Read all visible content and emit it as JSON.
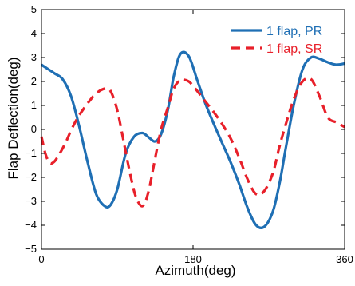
{
  "chart_data": {
    "type": "line",
    "title": "",
    "xlabel": "Azimuth(deg)",
    "ylabel": "Flap Deflection(deg)",
    "xlim": [
      0,
      360
    ],
    "ylim": [
      -5,
      5
    ],
    "x_ticks": [
      0,
      180,
      360
    ],
    "x_tick_labels": [
      "0",
      "180",
      "360"
    ],
    "y_ticks": [
      -5,
      -4,
      -3,
      -2,
      -1,
      0,
      1,
      2,
      3,
      4,
      5
    ],
    "y_tick_labels": [
      "−5",
      "−4",
      "−3",
      "−2",
      "−1",
      "0",
      "1",
      "2",
      "3",
      "4",
      "5"
    ],
    "grid": false,
    "legend_position": "top-right",
    "series": [
      {
        "name": "1 flap, PR",
        "color": "#1f6fb4",
        "dash": "solid",
        "x": [
          0,
          15,
          25,
          35,
          45,
          55,
          65,
          75,
          82,
          90,
          100,
          110,
          120,
          128,
          135,
          142,
          150,
          157,
          165,
          175,
          185,
          195,
          205,
          215,
          225,
          235,
          245,
          255,
          265,
          275,
          283,
          290,
          300,
          310,
          320,
          330,
          340,
          350,
          360
        ],
        "y": [
          2.7,
          2.35,
          2.1,
          1.4,
          0.1,
          -1.4,
          -2.7,
          -3.2,
          -3.15,
          -2.5,
          -1.0,
          -0.3,
          -0.15,
          -0.35,
          -0.5,
          -0.2,
          0.8,
          2.2,
          3.15,
          3.05,
          2.05,
          1.05,
          0.2,
          -0.6,
          -1.4,
          -2.3,
          -3.3,
          -4.0,
          -4.05,
          -3.4,
          -2.2,
          -0.8,
          1.1,
          2.5,
          3.0,
          2.95,
          2.8,
          2.7,
          2.75
        ]
      },
      {
        "name": "1 flap, SR",
        "color": "#e8202a",
        "dash": "dashed",
        "x": [
          0,
          5,
          10,
          15,
          20,
          25,
          30,
          35,
          40,
          45,
          55,
          65,
          75,
          82,
          90,
          97,
          105,
          112,
          120,
          127,
          135,
          142,
          150,
          157,
          165,
          175,
          185,
          195,
          205,
          215,
          225,
          235,
          245,
          255,
          265,
          275,
          282,
          290,
          300,
          310,
          320,
          330,
          340,
          350,
          355,
          360
        ],
        "y": [
          -0.3,
          -1.05,
          -1.4,
          -1.35,
          -1.1,
          -0.8,
          -0.45,
          -0.05,
          0.3,
          0.6,
          1.1,
          1.5,
          1.7,
          1.6,
          0.8,
          -0.4,
          -1.8,
          -2.8,
          -3.2,
          -2.6,
          -1.2,
          0.0,
          0.9,
          1.7,
          2.05,
          2.0,
          1.6,
          1.15,
          0.7,
          0.2,
          -0.4,
          -1.2,
          -2.1,
          -2.7,
          -2.55,
          -1.8,
          -0.8,
          0.2,
          1.3,
          2.0,
          2.1,
          1.4,
          0.5,
          0.3,
          0.2,
          0.1
        ]
      }
    ]
  }
}
